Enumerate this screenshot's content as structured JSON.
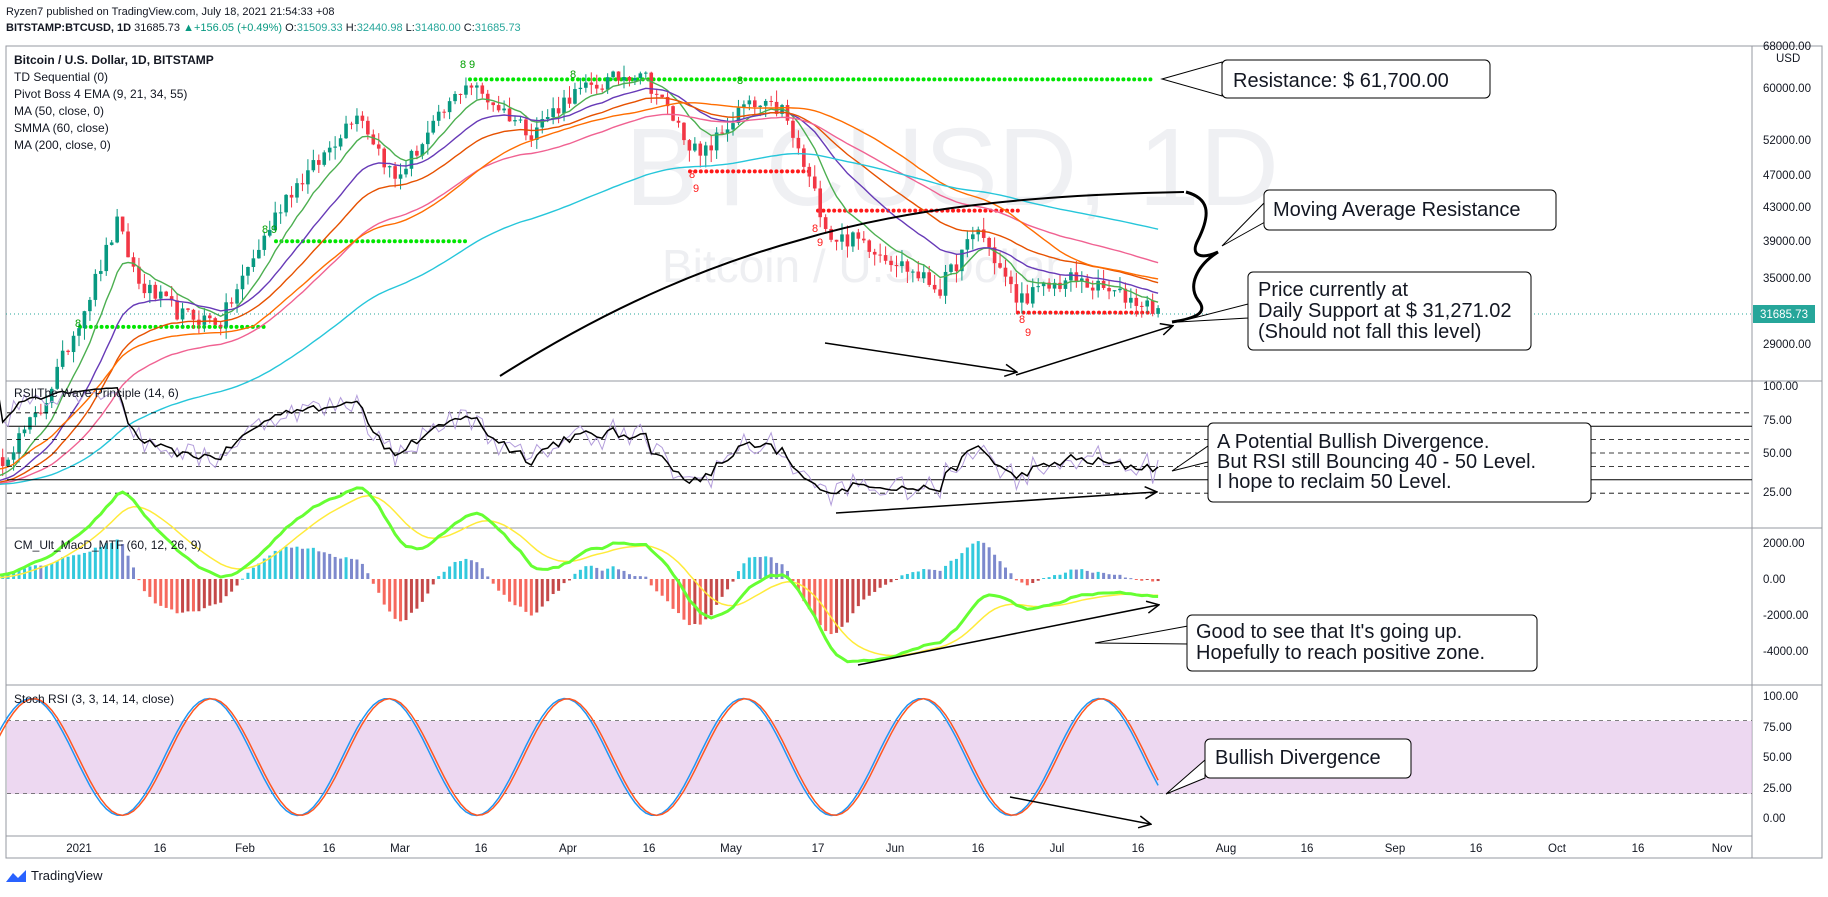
{
  "header": {
    "publisher_line": "Ryzen7 published on TradingView.com, July 18, 2021 21:54:33 +08",
    "symbol": "BITSTAMP:BTCUSD, 1D",
    "last": "31685.73",
    "change": "+156.05 (+0.49%)",
    "o_label": "O:",
    "o_value": "31509.33",
    "h_label": "H:",
    "h_value": "32440.98",
    "l_label": "L:",
    "l_value": "31480.00",
    "c_label": "C:",
    "c_value": "31685.73"
  },
  "colors": {
    "up": "#089981",
    "down": "#f23645",
    "ma50": "#ff6d00",
    "ema9": "#4caf50",
    "ema21": "#673ab7",
    "ema34": "#e65100",
    "ema55": "#f06292",
    "smma60": "#26c6da",
    "ma200": "#000000",
    "td_green": "#00e600",
    "td_red": "#ff1a1a",
    "stoch_k": "#2196f3",
    "stoch_d": "#ff5722",
    "macd_green": "#66ff33",
    "macd_red": "#ff3333",
    "signal_yellow": "#ffeb3b"
  },
  "price_pane": {
    "title": "Bitcoin / U.S. Dollar, 1D, BITSTAMP",
    "indicators": [
      "TD Sequential (0)",
      "Pivot Boss 4 EMA (9, 21, 34, 55)",
      "MA (50, close, 0)",
      "SMMA (60, close)",
      "MA (200, close, 0)"
    ],
    "watermark_symbol": "BTCUSD, 1D",
    "watermark_name": "Bitcoin / U.S. Dollar",
    "currency": "USD",
    "y_ticks": [
      "68000.00",
      "60000.00",
      "52000.00",
      "47000.00",
      "43000.00",
      "39000.00",
      "35000.00",
      "31685.73",
      "29000.00"
    ],
    "last_price_label": "31685.73"
  },
  "rsi_pane": {
    "title": "RSI|The Wave Principle (14, 6)",
    "y_ticks": [
      "100.00",
      "75.00",
      "50.00",
      "25.00"
    ]
  },
  "macd_pane": {
    "title": "CM_Ult_MacD_MTF (60, 12, 26, 9)",
    "y_ticks": [
      "2000.00",
      "0.00",
      "-2000.00",
      "-4000.00"
    ]
  },
  "stoch_pane": {
    "title": "Stoch RSI (3, 3, 14, 14, close)",
    "y_ticks": [
      "100.00",
      "75.00",
      "50.00",
      "25.00",
      "0.00"
    ]
  },
  "x_axis": {
    "ticks": [
      "2021",
      "16",
      "Feb",
      "16",
      "Mar",
      "16",
      "Apr",
      "16",
      "May",
      "17",
      "Jun",
      "16",
      "Jul",
      "16",
      "Aug",
      "16",
      "Sep",
      "16",
      "Oct",
      "16",
      "Nov"
    ]
  },
  "td_counts": {
    "green": "8",
    "green9": "9",
    "red": "8",
    "red9": "9"
  },
  "callouts": {
    "resistance": "Resistance: $ 61,700.00",
    "ma_resistance": "Moving Average Resistance",
    "price_line1": "Price currently at",
    "price_line2": "Daily Support at $ 31,271.02",
    "price_line3": "(Should not fall this level)",
    "rsi_line1": "A Potential Bullish Divergence.",
    "rsi_line2": "But RSI still Bouncing 40 - 50 Level.",
    "rsi_line3": "I hope to reclaim 50 Level.",
    "macd_line1": "Good to see that It's going up.",
    "macd_line2": "Hopefully to reach positive zone.",
    "stoch": "Bullish Divergence"
  },
  "chart_data": {
    "type": "candlestick",
    "title": "Bitcoin / U.S. Dollar, 1D, BITSTAMP",
    "anchors_x": [
      "2020-12-15",
      "2020-12-25",
      "2021-01-03",
      "2021-01-08",
      "2021-01-12",
      "2021-01-20",
      "2021-01-27",
      "2021-02-08",
      "2021-02-14",
      "2021-02-21",
      "2021-02-28",
      "2021-03-13",
      "2021-03-25",
      "2021-04-01",
      "2021-04-14",
      "2021-04-25",
      "2021-05-03",
      "2021-05-10",
      "2021-05-19",
      "2021-05-25",
      "2021-06-08",
      "2021-06-15",
      "2021-06-22",
      "2021-07-02",
      "2021-07-18"
    ],
    "anchors_close": [
      19300,
      23500,
      33000,
      40500,
      34000,
      31000,
      30500,
      44000,
      48500,
      56500,
      46000,
      61200,
      53000,
      58800,
      63500,
      49000,
      57000,
      56500,
      39000,
      38500,
      33500,
      40000,
      32500,
      34500,
      31685.73
    ],
    "last_close": 31685.73,
    "resistance_level": 61700,
    "support_level": 31271.02,
    "ylim_log": [
      26000,
      68000
    ],
    "rsi_levels": [
      80,
      70,
      60,
      50,
      40,
      30,
      20
    ],
    "stoch_band": [
      20,
      80
    ]
  }
}
